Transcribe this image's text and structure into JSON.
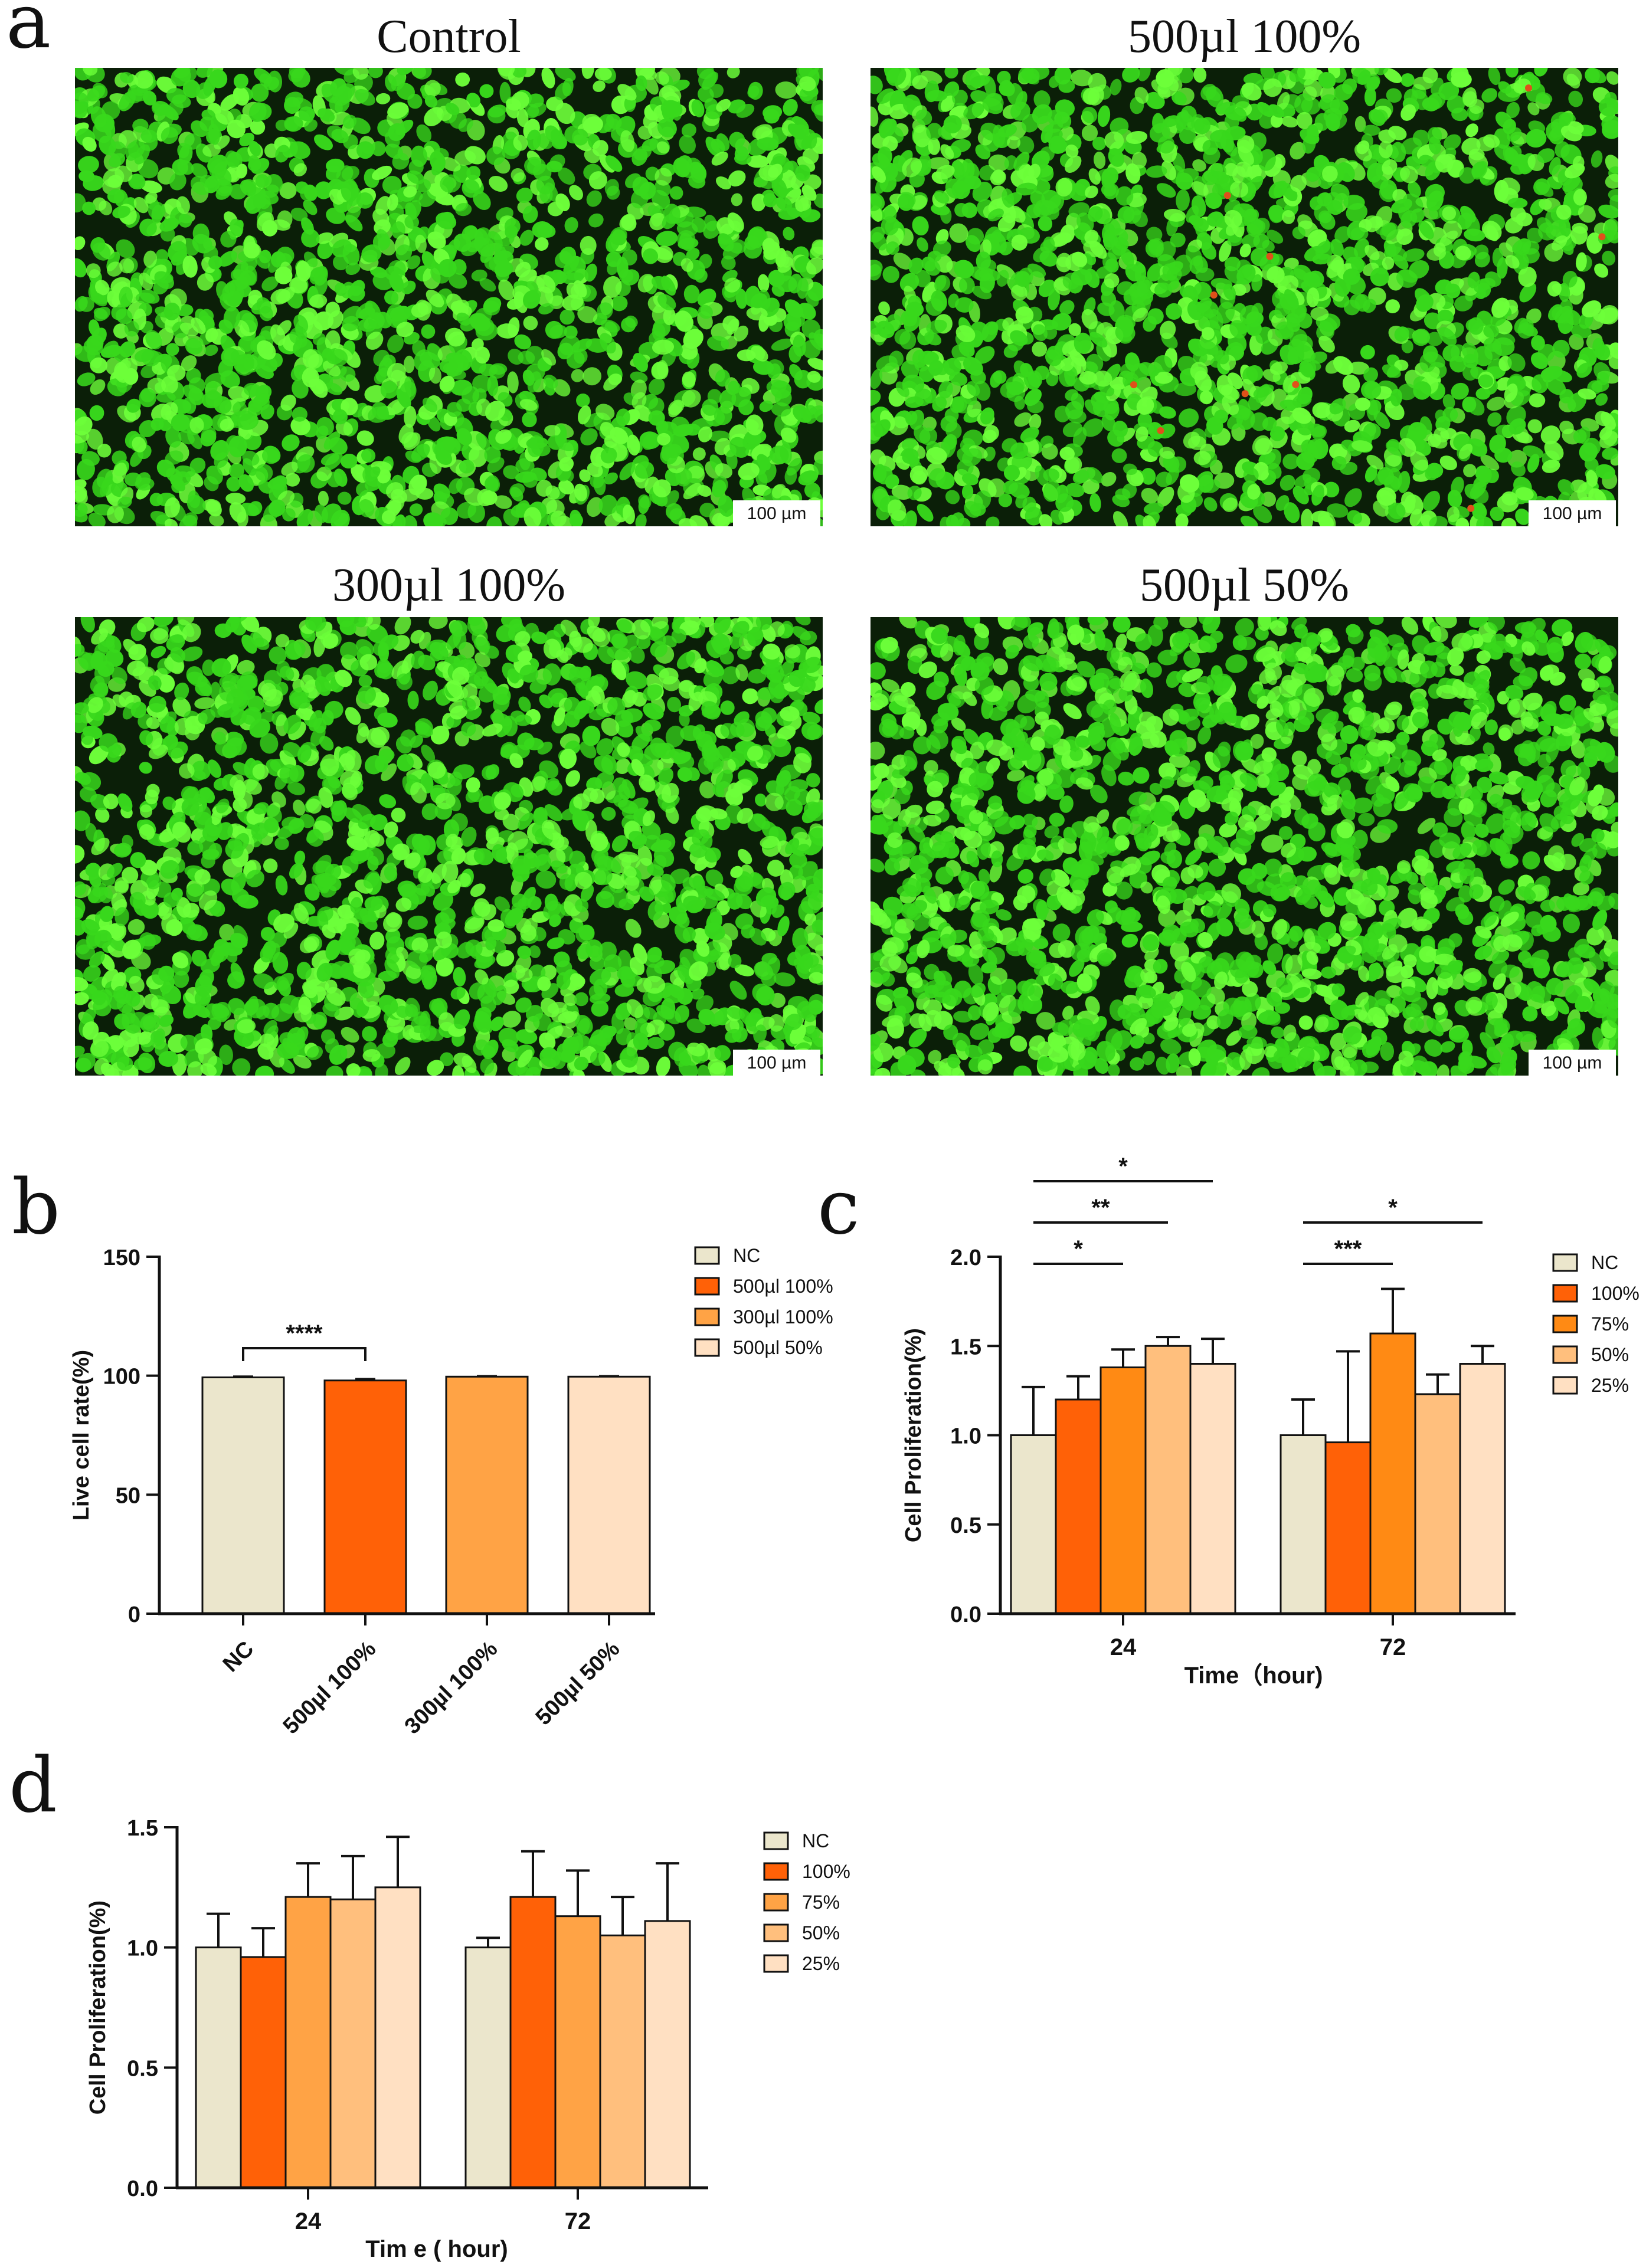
{
  "figure": {
    "panel_labels": [
      "a",
      "b",
      "c",
      "d"
    ],
    "micrographs": [
      {
        "title": "Control",
        "scale_bar": "100 µm"
      },
      {
        "title": "500µl 100%",
        "scale_bar": "100 µm"
      },
      {
        "title": "300µl 100%",
        "scale_bar": "100 µm"
      },
      {
        "title": "500µl 50%",
        "scale_bar": "100 µm"
      }
    ],
    "micrograph_colors": {
      "background": "#0b1f08",
      "cell": "#38d81c",
      "cell_bright": "#6dff3a",
      "dead_cell": "#e0501a"
    }
  },
  "chart_data": [
    {
      "panel": "b",
      "type": "bar",
      "title": "",
      "xlabel": "",
      "ylabel": "Live cell rate(%)",
      "ylim": [
        0,
        150
      ],
      "yticks": [
        0,
        50,
        100,
        150
      ],
      "categories": [
        "NC",
        "500µl 100%",
        "300µl 100%",
        "500µl 50%"
      ],
      "values": [
        99.3,
        98.0,
        99.6,
        99.6
      ],
      "errors": [
        0.3,
        0.6,
        0.2,
        0.2
      ],
      "colors": [
        "#ebe6cc",
        "#ff6107",
        "#ffa345",
        "#ffe0c2"
      ],
      "legend": {
        "position": "top-right",
        "entries": [
          "NC",
          "500µl 100%",
          "300µl 100%",
          "500µl 50%"
        ]
      },
      "significance": [
        {
          "from": 0,
          "to": 1,
          "label": "****"
        }
      ],
      "grid": false
    },
    {
      "panel": "c",
      "type": "bar",
      "title": "",
      "xlabel": "Time（hour)",
      "ylabel": "Cell Proliferation(%)",
      "ylim": [
        0,
        2.0
      ],
      "yticks": [
        "0.0",
        "0.5",
        "1.0",
        "1.5",
        "2.0"
      ],
      "categories": [
        "24",
        "72"
      ],
      "series": [
        {
          "name": "NC",
          "color": "#ebe6cc",
          "values": [
            1.0,
            1.0
          ],
          "errors": [
            0.27,
            0.2
          ]
        },
        {
          "name": "100%",
          "color": "#ff6107",
          "values": [
            1.2,
            0.96
          ],
          "errors": [
            0.13,
            0.51
          ]
        },
        {
          "name": "75%",
          "color": "#ff8a14",
          "values": [
            1.38,
            1.57
          ],
          "errors": [
            0.1,
            0.25
          ]
        },
        {
          "name": "50%",
          "color": "#ffbf7d",
          "values": [
            1.5,
            1.23
          ],
          "errors": [
            0.05,
            0.11
          ]
        },
        {
          "name": "25%",
          "color": "#ffe0c2",
          "values": [
            1.4,
            1.4
          ],
          "errors": [
            0.14,
            0.1
          ]
        }
      ],
      "legend": {
        "position": "right",
        "entries": [
          "NC",
          "100%",
          "75%",
          "50%",
          "25%"
        ]
      },
      "significance": [
        {
          "group": 0,
          "from": 0,
          "to": 2,
          "label": "*",
          "level": 1
        },
        {
          "group": 0,
          "from": 0,
          "to": 3,
          "label": "**",
          "level": 2
        },
        {
          "group": 0,
          "from": 0,
          "to": 4,
          "label": "*",
          "level": 3
        },
        {
          "group": 1,
          "from": 0,
          "to": 2,
          "label": "***",
          "level": 1
        },
        {
          "group": 1,
          "from": 0,
          "to": 4,
          "label": "*",
          "level": 2
        }
      ],
      "grid": false
    },
    {
      "panel": "d",
      "type": "bar",
      "title": "",
      "xlabel": "Tim e ( hour)",
      "ylabel": "Cell Proliferation(%)",
      "ylim": [
        0,
        1.5
      ],
      "yticks": [
        "0.0",
        "0.5",
        "1.0",
        "1.5"
      ],
      "categories": [
        "24",
        "72"
      ],
      "series": [
        {
          "name": "NC",
          "color": "#ebe6cc",
          "values": [
            1.0,
            1.0
          ],
          "errors": [
            0.14,
            0.04
          ]
        },
        {
          "name": "100%",
          "color": "#ff6107",
          "values": [
            0.96,
            1.21
          ],
          "errors": [
            0.12,
            0.19
          ]
        },
        {
          "name": "75%",
          "color": "#ffa345",
          "values": [
            1.21,
            1.13
          ],
          "errors": [
            0.14,
            0.19
          ]
        },
        {
          "name": "50%",
          "color": "#ffbf7d",
          "values": [
            1.2,
            1.05
          ],
          "errors": [
            0.18,
            0.16
          ]
        },
        {
          "name": "25%",
          "color": "#ffe0c2",
          "values": [
            1.25,
            1.11
          ],
          "errors": [
            0.21,
            0.24
          ]
        }
      ],
      "legend": {
        "position": "right",
        "entries": [
          "NC",
          "100%",
          "75%",
          "50%",
          "25%"
        ]
      },
      "grid": false
    }
  ]
}
